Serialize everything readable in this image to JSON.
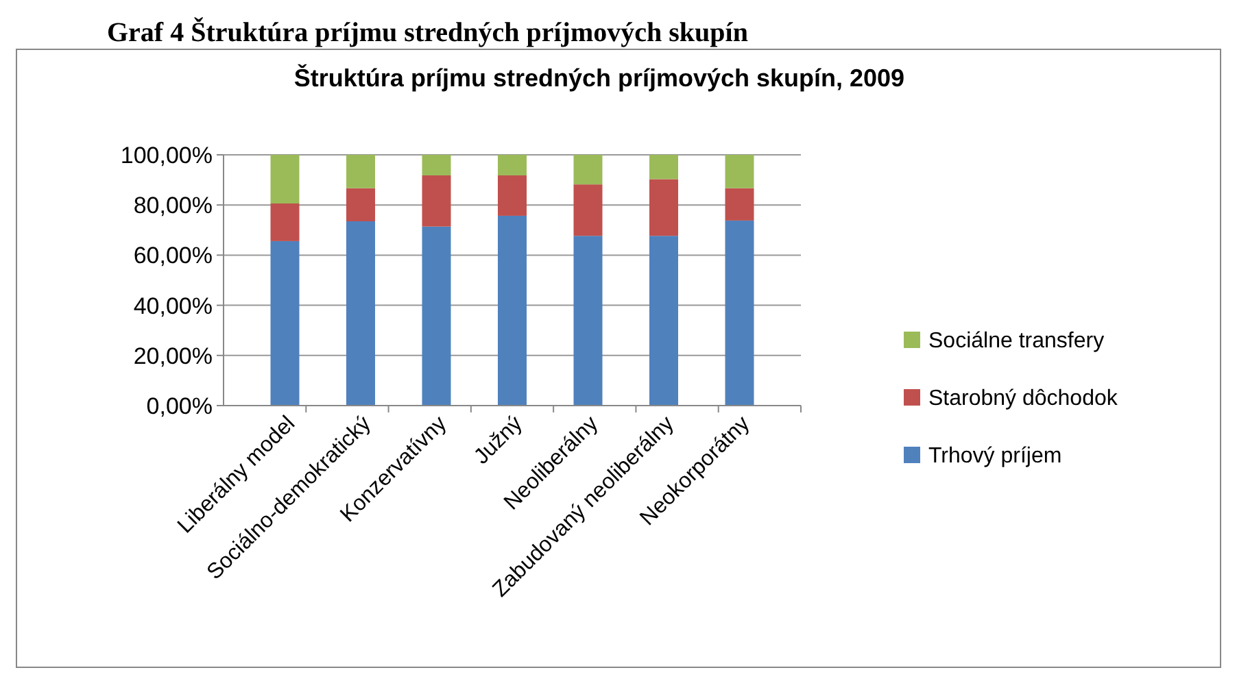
{
  "chart_data": {
    "type": "bar",
    "title": "Štruktúra príjmu stredných príjmových skupín, 2009",
    "annotations": [
      "Graf 4 Štruktúra príjmu stredných príjmových skupín"
    ],
    "categories": [
      "Liberálny model",
      "Sociálno-demokratický",
      "Konzervatívny",
      "Južný",
      "Neoliberálny",
      "Zabudovaný neoliberálny",
      "Neokorporátny"
    ],
    "stacked": true,
    "series": [
      {
        "name": "Trhový príjem",
        "color": "#4f81bd",
        "values": [
          65.6,
          73.5,
          71.4,
          75.7,
          67.7,
          67.7,
          73.8
        ]
      },
      {
        "name": "Starobný dôchodok",
        "color": "#c0504d",
        "values": [
          15,
          13.2,
          20.4,
          16.1,
          20.5,
          22.6,
          12.9
        ]
      },
      {
        "name": "Sociálne transfery",
        "color": "#9bbb59",
        "values": [
          19.4,
          13.3,
          8.2,
          8.2,
          11.8,
          9.7,
          13.3
        ]
      }
    ],
    "ylim": [
      0,
      100
    ],
    "yticks": [
      {
        "value": 0,
        "label": "0,00%"
      },
      {
        "value": 20,
        "label": "20,00%"
      },
      {
        "value": 40,
        "label": "40,00%"
      },
      {
        "value": 60,
        "label": "60,00%"
      },
      {
        "value": 80,
        "label": "80,00%"
      },
      {
        "value": 100,
        "label": "100,00%"
      }
    ],
    "grid": "y",
    "legend": "right"
  }
}
